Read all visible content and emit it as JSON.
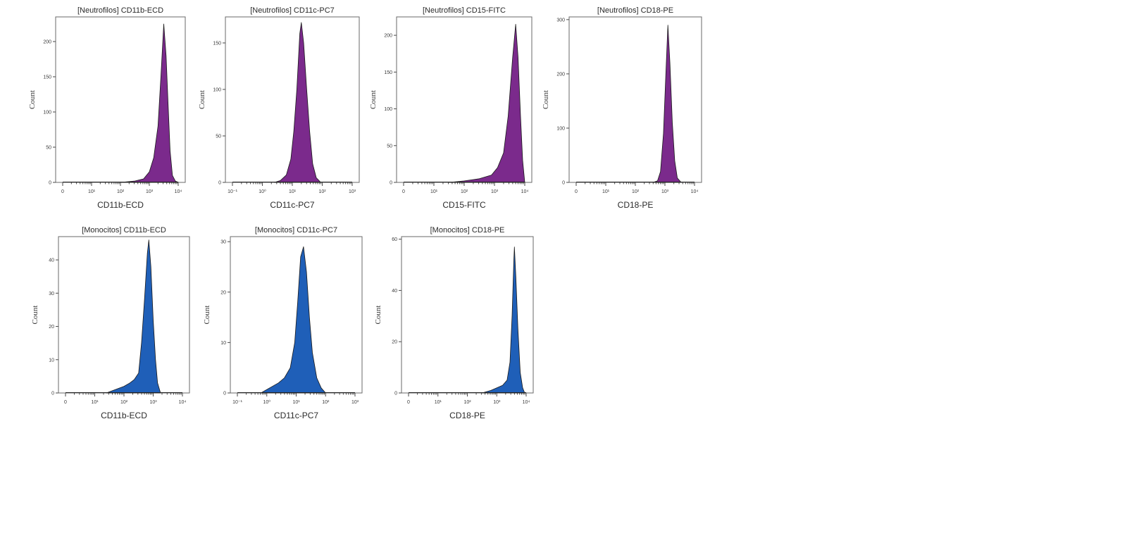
{
  "chart_data": [
    {
      "type": "area",
      "title": "[Neutrofilos] CD11b-ECD",
      "xlabel": "CD11b-ECD",
      "ylabel": "Count",
      "x_scale": "log",
      "x_ticks": [
        "0",
        "10¹",
        "10²",
        "10³",
        "10⁴"
      ],
      "xlim": [
        0,
        4
      ],
      "y_ticks": [
        0,
        50,
        100,
        150,
        200
      ],
      "ylim": [
        0,
        235
      ],
      "fill_color": "#7b2a8c",
      "series": [
        {
          "peak_x": 3.5,
          "peak_count": 225,
          "points": [
            [
              2.0,
              0
            ],
            [
              2.5,
              2
            ],
            [
              2.8,
              5
            ],
            [
              3.0,
              15
            ],
            [
              3.15,
              35
            ],
            [
              3.3,
              80
            ],
            [
              3.4,
              150
            ],
            [
              3.5,
              225
            ],
            [
              3.58,
              180
            ],
            [
              3.65,
              110
            ],
            [
              3.72,
              45
            ],
            [
              3.8,
              10
            ],
            [
              3.9,
              2
            ],
            [
              4.0,
              0
            ]
          ]
        }
      ]
    },
    {
      "type": "area",
      "title": "[Neutrofilos] CD11c-PC7",
      "xlabel": "CD11c-PC7",
      "ylabel": "Count",
      "x_scale": "log",
      "x_ticks": [
        "10⁻¹",
        "10⁰",
        "10¹",
        "10²",
        "10³"
      ],
      "xlim": [
        -1,
        3
      ],
      "y_ticks": [
        0,
        50,
        100,
        150
      ],
      "ylim": [
        0,
        178
      ],
      "fill_color": "#7b2a8c",
      "series": [
        {
          "peak_x": 1.3,
          "peak_count": 172,
          "points": [
            [
              0.4,
              0
            ],
            [
              0.6,
              2
            ],
            [
              0.8,
              8
            ],
            [
              0.95,
              25
            ],
            [
              1.05,
              55
            ],
            [
              1.15,
              100
            ],
            [
              1.25,
              160
            ],
            [
              1.3,
              172
            ],
            [
              1.38,
              150
            ],
            [
              1.48,
              100
            ],
            [
              1.58,
              55
            ],
            [
              1.68,
              20
            ],
            [
              1.8,
              5
            ],
            [
              1.95,
              0
            ]
          ]
        }
      ]
    },
    {
      "type": "area",
      "title": "[Neutrofilos] CD15-FITC",
      "xlabel": "CD15-FITC",
      "ylabel": "Count",
      "x_scale": "log",
      "x_ticks": [
        "0",
        "10¹",
        "10²",
        "10³",
        "10⁴"
      ],
      "xlim": [
        0,
        4
      ],
      "y_ticks": [
        0,
        50,
        100,
        150,
        200
      ],
      "ylim": [
        0,
        225
      ],
      "fill_color": "#7b2a8c",
      "series": [
        {
          "peak_x": 3.7,
          "peak_count": 215,
          "points": [
            [
              1.5,
              0
            ],
            [
              2.0,
              2
            ],
            [
              2.5,
              5
            ],
            [
              2.9,
              10
            ],
            [
              3.1,
              20
            ],
            [
              3.3,
              40
            ],
            [
              3.45,
              90
            ],
            [
              3.6,
              170
            ],
            [
              3.7,
              215
            ],
            [
              3.78,
              170
            ],
            [
              3.86,
              90
            ],
            [
              3.93,
              30
            ],
            [
              4.0,
              0
            ]
          ]
        }
      ]
    },
    {
      "type": "area",
      "title": "[Neutrofilos] CD18-PE",
      "xlabel": "CD18-PE",
      "ylabel": "Count",
      "x_scale": "log",
      "x_ticks": [
        "0",
        "10¹",
        "10²",
        "10³",
        "10⁴"
      ],
      "xlim": [
        0,
        4
      ],
      "y_ticks": [
        0,
        100,
        200,
        300
      ],
      "ylim": [
        0,
        305
      ],
      "fill_color": "#7b2a8c",
      "series": [
        {
          "peak_x": 3.1,
          "peak_count": 290,
          "points": [
            [
              2.6,
              0
            ],
            [
              2.75,
              3
            ],
            [
              2.85,
              20
            ],
            [
              2.95,
              90
            ],
            [
              3.03,
              200
            ],
            [
              3.1,
              290
            ],
            [
              3.17,
              220
            ],
            [
              3.25,
              110
            ],
            [
              3.33,
              40
            ],
            [
              3.42,
              8
            ],
            [
              3.55,
              0
            ]
          ]
        }
      ]
    },
    {
      "type": "area",
      "title": "[Monocitos] CD11b-ECD",
      "xlabel": "CD11b-ECD",
      "ylabel": "Count",
      "x_scale": "log",
      "x_ticks": [
        "0",
        "10¹",
        "10²",
        "10³",
        "10⁴"
      ],
      "xlim": [
        0,
        4
      ],
      "y_ticks": [
        0,
        10,
        20,
        30,
        40
      ],
      "ylim": [
        0,
        47
      ],
      "fill_color": "#1f5fb8",
      "series": [
        {
          "peak_x": 2.85,
          "peak_count": 46,
          "points": [
            [
              1.4,
              0
            ],
            [
              1.7,
              1
            ],
            [
              2.0,
              2
            ],
            [
              2.2,
              3
            ],
            [
              2.35,
              4
            ],
            [
              2.5,
              6
            ],
            [
              2.6,
              15
            ],
            [
              2.7,
              28
            ],
            [
              2.8,
              42
            ],
            [
              2.85,
              46
            ],
            [
              2.92,
              38
            ],
            [
              3.0,
              22
            ],
            [
              3.08,
              10
            ],
            [
              3.15,
              3
            ],
            [
              3.25,
              0
            ]
          ]
        }
      ]
    },
    {
      "type": "area",
      "title": "[Monocitos] CD11c-PC7",
      "xlabel": "CD11c-PC7",
      "ylabel": "Count",
      "x_scale": "log",
      "x_ticks": [
        "10⁻¹",
        "10⁰",
        "10¹",
        "10²",
        "10³"
      ],
      "xlim": [
        -1,
        3
      ],
      "y_ticks": [
        0,
        10,
        20,
        30
      ],
      "ylim": [
        0,
        31
      ],
      "fill_color": "#1f5fb8",
      "series": [
        {
          "peak_x": 1.25,
          "peak_count": 29,
          "points": [
            [
              -0.2,
              0
            ],
            [
              0.1,
              1
            ],
            [
              0.4,
              2
            ],
            [
              0.6,
              3
            ],
            [
              0.8,
              5
            ],
            [
              0.95,
              10
            ],
            [
              1.05,
              18
            ],
            [
              1.15,
              27
            ],
            [
              1.25,
              29
            ],
            [
              1.35,
              24
            ],
            [
              1.45,
              15
            ],
            [
              1.55,
              8
            ],
            [
              1.7,
              3
            ],
            [
              1.85,
              1
            ],
            [
              2.0,
              0
            ]
          ]
        }
      ]
    },
    {
      "type": "area",
      "title": "[Monocitos] CD18-PE",
      "xlabel": "CD18-PE",
      "ylabel": "Count",
      "x_scale": "log",
      "x_ticks": [
        "0",
        "10¹",
        "10²",
        "10³",
        "10⁴"
      ],
      "xlim": [
        0,
        4
      ],
      "y_ticks": [
        0,
        20,
        40,
        60
      ],
      "ylim": [
        0,
        61
      ],
      "fill_color": "#1f5fb8",
      "series": [
        {
          "peak_x": 3.6,
          "peak_count": 57,
          "points": [
            [
              2.5,
              0
            ],
            [
              2.8,
              1
            ],
            [
              3.0,
              2
            ],
            [
              3.2,
              3
            ],
            [
              3.35,
              5
            ],
            [
              3.45,
              12
            ],
            [
              3.52,
              30
            ],
            [
              3.58,
              52
            ],
            [
              3.6,
              57
            ],
            [
              3.65,
              45
            ],
            [
              3.72,
              25
            ],
            [
              3.8,
              8
            ],
            [
              3.88,
              2
            ],
            [
              3.95,
              0
            ]
          ]
        }
      ]
    }
  ]
}
